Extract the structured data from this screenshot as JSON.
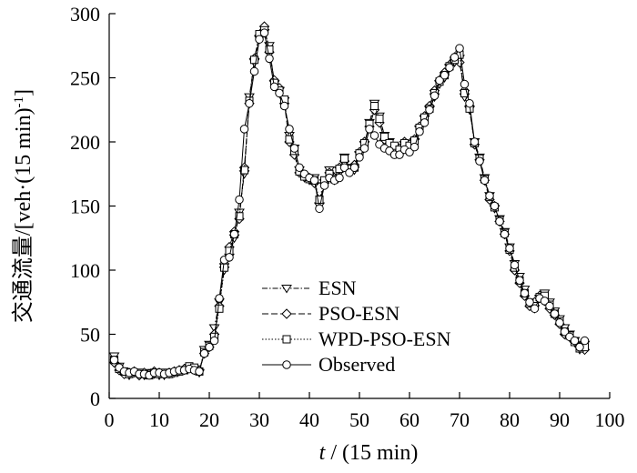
{
  "chart_data": {
    "type": "line",
    "xlabel": "t / (15 min)",
    "ylabel": "交通流量/[veh·(15 min)-1]",
    "xlim": [
      0,
      100
    ],
    "ylim": [
      0,
      300
    ],
    "x_ticks": [
      0,
      10,
      20,
      30,
      40,
      50,
      60,
      70,
      80,
      90,
      100
    ],
    "y_ticks": [
      0,
      50,
      100,
      150,
      200,
      250,
      300
    ],
    "legend_position": "center-left",
    "x": [
      1,
      2,
      3,
      4,
      5,
      6,
      7,
      8,
      9,
      10,
      11,
      12,
      13,
      14,
      15,
      16,
      17,
      18,
      19,
      20,
      21,
      22,
      23,
      24,
      25,
      26,
      27,
      28,
      29,
      30,
      31,
      32,
      33,
      34,
      35,
      36,
      37,
      38,
      39,
      40,
      41,
      42,
      43,
      44,
      45,
      46,
      47,
      48,
      49,
      50,
      51,
      52,
      53,
      54,
      55,
      56,
      57,
      58,
      59,
      60,
      61,
      62,
      63,
      64,
      65,
      66,
      67,
      68,
      69,
      70,
      71,
      72,
      73,
      74,
      75,
      76,
      77,
      78,
      79,
      80,
      81,
      82,
      83,
      84,
      85,
      86,
      87,
      88,
      89,
      90,
      91,
      92,
      93,
      94,
      95
    ],
    "series": [
      {
        "name": "ESN",
        "marker": "triangle-down",
        "dash": "6,2,1.5,2",
        "values": [
          33,
          25,
          20,
          18,
          20,
          19,
          18,
          20,
          19,
          18,
          18,
          19,
          20,
          21,
          22,
          24,
          22,
          20,
          38,
          42,
          55,
          75,
          100,
          110,
          125,
          145,
          175,
          235,
          262,
          280,
          285,
          275,
          245,
          240,
          232,
          205,
          195,
          178,
          172,
          170,
          172,
          150,
          168,
          178,
          170,
          178,
          188,
          180,
          178,
          190,
          198,
          215,
          230,
          220,
          205,
          200,
          195,
          192,
          198,
          196,
          200,
          210,
          218,
          225,
          235,
          245,
          250,
          258,
          262,
          265,
          235,
          225,
          200,
          188,
          172,
          158,
          148,
          140,
          130,
          118,
          105,
          95,
          85,
          75,
          70,
          78,
          82,
          75,
          68,
          62,
          55,
          50,
          45,
          38,
          42
        ]
      },
      {
        "name": "PSO-ESN",
        "marker": "diamond",
        "dash": "7,3",
        "values": [
          28,
          22,
          19,
          20,
          21,
          18,
          20,
          19,
          21,
          20,
          19,
          20,
          21,
          22,
          23,
          24,
          23,
          22,
          35,
          40,
          50,
          72,
          105,
          118,
          130,
          140,
          180,
          230,
          265,
          283,
          290,
          270,
          248,
          242,
          230,
          200,
          190,
          176,
          174,
          172,
          168,
          152,
          168,
          176,
          172,
          180,
          185,
          178,
          182,
          192,
          200,
          212,
          225,
          215,
          202,
          198,
          196,
          195,
          200,
          198,
          202,
          212,
          220,
          228,
          240,
          248,
          254,
          260,
          266,
          262,
          240,
          228,
          198,
          186,
          170,
          155,
          150,
          138,
          128,
          115,
          100,
          90,
          80,
          72,
          75,
          80,
          76,
          70,
          65,
          58,
          50,
          48,
          44,
          40,
          38
        ]
      },
      {
        "name": "WPD-PSO-ESN",
        "marker": "square",
        "dash": "1.5,2",
        "values": [
          30,
          23,
          21,
          19,
          20,
          20,
          19,
          18,
          20,
          19,
          20,
          19,
          20,
          21,
          22,
          25,
          24,
          21,
          36,
          41,
          48,
          70,
          102,
          115,
          128,
          142,
          178,
          232,
          264,
          284,
          287,
          272,
          246,
          240,
          233,
          202,
          193,
          177,
          173,
          171,
          170,
          155,
          170,
          175,
          171,
          179,
          187,
          179,
          180,
          191,
          199,
          214,
          228,
          218,
          204,
          199,
          197,
          194,
          199,
          197,
          201,
          211,
          219,
          226,
          238,
          247,
          252,
          259,
          264,
          268,
          238,
          226,
          199,
          187,
          171,
          157,
          149,
          139,
          129,
          116,
          102,
          92,
          82,
          74,
          72,
          79,
          80,
          73,
          66,
          60,
          52,
          49,
          44,
          39,
          40
        ]
      },
      {
        "name": "Observed",
        "marker": "circle",
        "dash": "",
        "values": [
          30,
          24,
          21,
          20,
          21,
          19,
          19,
          18,
          20,
          20,
          19,
          20,
          21,
          22,
          22,
          23,
          22,
          21,
          35,
          40,
          45,
          78,
          108,
          110,
          128,
          155,
          210,
          230,
          255,
          280,
          285,
          265,
          243,
          238,
          228,
          210,
          195,
          180,
          175,
          172,
          170,
          148,
          166,
          172,
          170,
          172,
          180,
          176,
          180,
          188,
          195,
          210,
          205,
          198,
          195,
          193,
          190,
          190,
          194,
          192,
          196,
          208,
          215,
          225,
          236,
          248,
          252,
          258,
          266,
          273,
          245,
          230,
          200,
          185,
          170,
          158,
          150,
          138,
          128,
          117,
          104,
          92,
          82,
          75,
          70,
          78,
          76,
          72,
          66,
          59,
          52,
          48,
          45,
          40,
          45
        ]
      }
    ]
  }
}
